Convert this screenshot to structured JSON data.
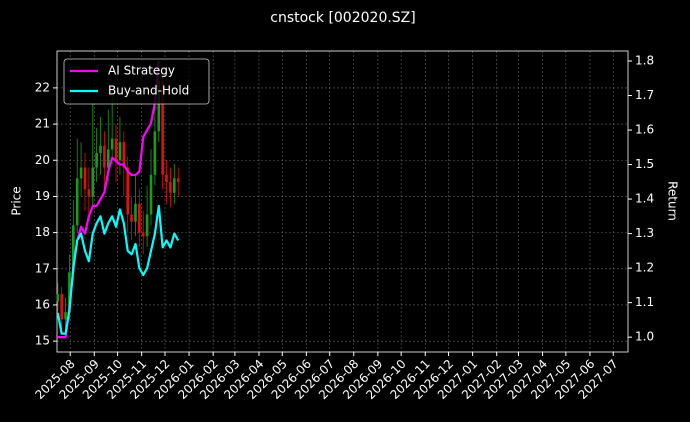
{
  "chart_data": {
    "type": "candlestick",
    "title": "cnstock [002020.SZ]",
    "ylabel": "Price",
    "y2label": "Return",
    "x": [
      "2025-07-16",
      "2025-07-21",
      "2025-07-26",
      "2025-07-31",
      "2025-08-05",
      "2025-08-10",
      "2025-08-15",
      "2025-08-20",
      "2025-08-25",
      "2025-08-30",
      "2025-09-04",
      "2025-09-09",
      "2025-09-14",
      "2025-09-19",
      "2025-09-24",
      "2025-09-29",
      "2025-10-04",
      "2025-10-09",
      "2025-10-14",
      "2025-10-19",
      "2025-10-24",
      "2025-10-29",
      "2025-11-03",
      "2025-11-08",
      "2025-11-13",
      "2025-11-18",
      "2025-11-23",
      "2025-11-28",
      "2025-12-03",
      "2025-12-08",
      "2025-12-13",
      "2025-12-18"
    ],
    "open": [
      16.1,
      16.3,
      15.6,
      15.8,
      16.9,
      18.2,
      19.5,
      19.8,
      19.2,
      19.0,
      19.8,
      20.2,
      20.4,
      19.8,
      20.3,
      20.6,
      20.0,
      20.5,
      19.8,
      18.5,
      18.3,
      18.8,
      18.0,
      17.9,
      18.5,
      19.6,
      20.8,
      22.2,
      19.6,
      19.4,
      19.1,
      19.5
    ],
    "high": [
      16.6,
      16.5,
      16.2,
      17.4,
      18.9,
      20.6,
      20.5,
      20.2,
      19.8,
      21.6,
      20.9,
      21.2,
      20.8,
      21.4,
      21.8,
      21.0,
      21.2,
      20.8,
      20.1,
      19.0,
      19.6,
      19.2,
      18.6,
      19.3,
      20.3,
      21.5,
      22.6,
      22.4,
      20.0,
      19.8,
      19.9,
      19.8
    ],
    "low": [
      15.7,
      15.2,
      15.3,
      15.6,
      16.7,
      18.0,
      19.0,
      18.6,
      18.3,
      18.7,
      19.4,
      19.6,
      19.2,
      19.4,
      19.9,
      19.4,
      19.6,
      19.0,
      18.0,
      17.8,
      17.9,
      17.6,
      17.4,
      17.6,
      18.2,
      19.3,
      20.5,
      19.2,
      18.8,
      18.7,
      18.8,
      19.0
    ],
    "close": [
      16.3,
      15.6,
      15.8,
      16.9,
      18.2,
      19.5,
      19.8,
      19.2,
      19.0,
      19.8,
      20.2,
      20.4,
      19.8,
      20.3,
      20.6,
      20.0,
      20.5,
      19.8,
      18.5,
      18.3,
      18.8,
      18.0,
      17.9,
      18.5,
      19.6,
      20.8,
      22.2,
      19.6,
      19.4,
      19.1,
      19.5,
      19.4
    ],
    "up_color": "#1a9c1a",
    "down_color": "#e01010",
    "series": [
      {
        "name": "AI Strategy",
        "color": "#ff00ff",
        "axis": "y2",
        "values": [
          1.0,
          1.0,
          1.0,
          1.08,
          1.2,
          1.28,
          1.32,
          1.3,
          1.35,
          1.38,
          1.38,
          1.4,
          1.42,
          1.48,
          1.52,
          1.51,
          1.5,
          1.5,
          1.48,
          1.47,
          1.47,
          1.48,
          1.58,
          1.6,
          1.62,
          1.68,
          1.8,
          null,
          null,
          null,
          null,
          null
        ]
      },
      {
        "name": "Buy-and-Hold",
        "color": "#00ffff",
        "axis": "y2",
        "values": [
          1.07,
          1.01,
          1.01,
          1.08,
          1.2,
          1.28,
          1.3,
          1.25,
          1.22,
          1.3,
          1.33,
          1.35,
          1.3,
          1.33,
          1.35,
          1.32,
          1.37,
          1.33,
          1.25,
          1.24,
          1.27,
          1.2,
          1.18,
          1.2,
          1.25,
          1.3,
          1.38,
          1.26,
          1.28,
          1.26,
          1.3,
          1.28
        ]
      }
    ],
    "xlim": [
      "2025-07-15",
      "2027-07-20"
    ],
    "xticks": [
      "2025-08",
      "2025-09",
      "2025-10",
      "2025-11",
      "2025-12",
      "2026-01",
      "2026-02",
      "2026-03",
      "2026-04",
      "2026-05",
      "2026-06",
      "2026-07",
      "2026-08",
      "2026-09",
      "2026-10",
      "2026-11",
      "2026-12",
      "2027-01",
      "2027-02",
      "2027-03",
      "2027-04",
      "2027-05",
      "2027-06",
      "2027-07"
    ],
    "ylim": [
      14.7,
      23.02
    ],
    "yticks": [
      15,
      16,
      17,
      18,
      19,
      20,
      21,
      22
    ],
    "y2lim": [
      0.957,
      1.829
    ],
    "y2ticks": [
      {
        "value": 1,
        "label": "1.0"
      },
      1.1,
      1.2,
      1.3,
      1.4,
      1.5,
      1.6,
      1.7,
      1.8
    ],
    "grid": true,
    "legend": "upper left"
  }
}
